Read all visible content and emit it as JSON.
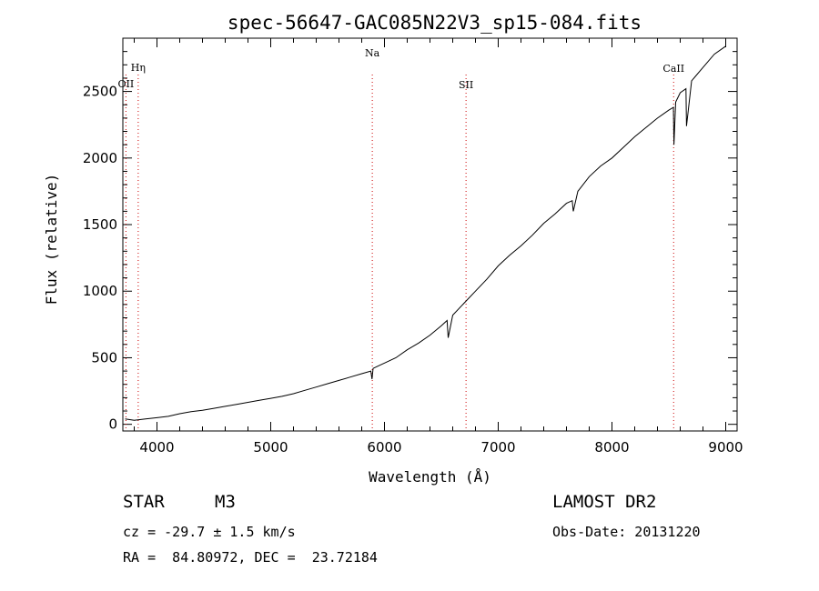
{
  "chart_data": {
    "type": "line",
    "title": "spec-56647-GAC085N22V3_sp15-084.fits",
    "xlabel": "Wavelength (Å)",
    "ylabel": "Flux (relative)",
    "xlim": [
      3700,
      9100
    ],
    "ylim": [
      -50,
      2900
    ],
    "x_ticks": [
      "4000",
      "5000",
      "6000",
      "7000",
      "8000",
      "9000"
    ],
    "y_ticks": [
      "0",
      "500",
      "1000",
      "1500",
      "2000",
      "2500"
    ],
    "x_tick_values": [
      4000,
      5000,
      6000,
      7000,
      8000,
      9000
    ],
    "y_tick_values": [
      0,
      500,
      1000,
      1500,
      2000,
      2500
    ],
    "grid": false,
    "lines": [
      {
        "label": "Hη",
        "x": 3835
      },
      {
        "label": "OII",
        "x": 3727
      },
      {
        "label": "Na",
        "x": 5893
      },
      {
        "label": "SII",
        "x": 6717
      },
      {
        "label": "CaII",
        "x": 8542
      }
    ],
    "series": [
      {
        "x": [
          3720,
          3800,
          3900,
          4000,
          4100,
          4200,
          4300,
          4400,
          4500,
          4600,
          4700,
          4800,
          4900,
          5000,
          5100,
          5200,
          5300,
          5400,
          5500,
          5600,
          5700,
          5800,
          5880,
          5890,
          5900,
          5950,
          6000,
          6100,
          6200,
          6300,
          6400,
          6500,
          6550,
          6560,
          6600,
          6700,
          6800,
          6900,
          7000,
          7100,
          7200,
          7300,
          7400,
          7500,
          7600,
          7650,
          7660,
          7700,
          7800,
          7900,
          8000,
          8100,
          8200,
          8300,
          8400,
          8500,
          8540,
          8545,
          8560,
          8600,
          8650,
          8655,
          8700,
          8800,
          8900,
          9000
        ],
        "y": [
          40,
          30,
          40,
          50,
          60,
          80,
          95,
          105,
          120,
          135,
          150,
          165,
          180,
          195,
          210,
          230,
          255,
          280,
          305,
          330,
          355,
          380,
          400,
          340,
          420,
          440,
          460,
          500,
          560,
          610,
          670,
          740,
          780,
          650,
          820,
          910,
          1000,
          1090,
          1190,
          1270,
          1340,
          1420,
          1510,
          1580,
          1660,
          1680,
          1600,
          1750,
          1860,
          1940,
          2000,
          2080,
          2160,
          2230,
          2300,
          2360,
          2380,
          2100,
          2420,
          2490,
          2520,
          2240,
          2580,
          2680,
          2780,
          2840
        ]
      }
    ]
  },
  "info": {
    "class": "STAR",
    "subclass": "M3",
    "survey": "LAMOST DR2",
    "cz": "cz = -29.7 ± 1.5 km/s",
    "obs_date": "Obs-Date: 20131220",
    "coords": "RA =  84.80972, DEC =  23.72184"
  }
}
